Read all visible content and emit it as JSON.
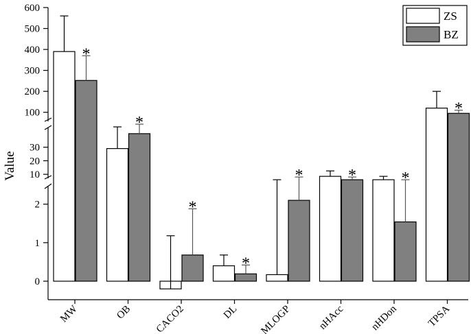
{
  "chart_data": {
    "type": "bar",
    "title": "",
    "xlabel": "",
    "ylabel": "Value",
    "y_scale": "broken",
    "y_segments": [
      {
        "range": [
          0,
          2.6
        ],
        "ticks": [
          0,
          1,
          2
        ]
      },
      {
        "range": [
          4,
          45
        ],
        "ticks": [
          10,
          20,
          30
        ]
      },
      {
        "range": [
          50,
          600
        ],
        "ticks": [
          100,
          200,
          300,
          400,
          500,
          600
        ]
      }
    ],
    "categories": [
      "MW",
      "OB",
      "CACO2",
      "DL",
      "MLOGP",
      "nHAcc",
      "nHDon",
      "TPSA"
    ],
    "series": [
      {
        "name": "ZS",
        "color": "#ffffff",
        "values": [
          390,
          29,
          -0.2,
          0.4,
          0.17,
          8.5,
          6,
          120
        ],
        "error_upper": [
          560,
          45,
          1.18,
          0.68,
          6,
          12.5,
          8.5,
          200
        ]
      },
      {
        "name": "BZ",
        "color": "#808080",
        "values": [
          252,
          40,
          0.68,
          0.19,
          2.1,
          6,
          1.54,
          95
        ],
        "error_upper": [
          370,
          47,
          1.88,
          0.42,
          8,
          8,
          6,
          110
        ]
      }
    ],
    "significance_marker": "*",
    "significant": [
      true,
      true,
      true,
      true,
      true,
      true,
      true,
      true
    ],
    "legend": {
      "position": "top-right",
      "entries": [
        "ZS",
        "BZ"
      ]
    },
    "grid": false
  }
}
